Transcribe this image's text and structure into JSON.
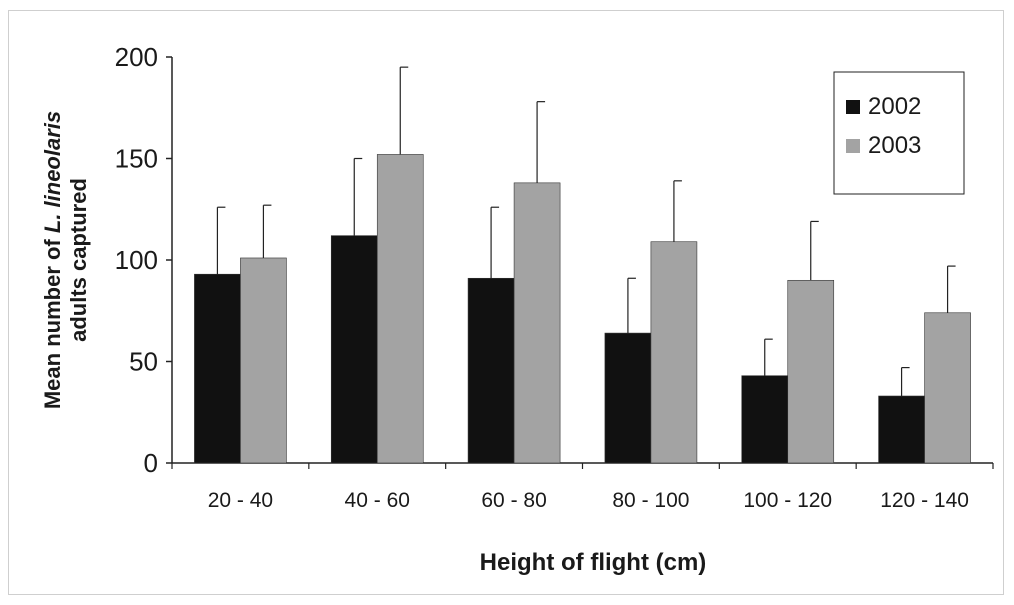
{
  "chart_data": {
    "type": "bar",
    "title": "",
    "xlabel": "Height of flight (cm)",
    "ylabel_line1": "Mean number of L. lineolaris",
    "ylabel_line2": "adults captured",
    "ylim": [
      0,
      200
    ],
    "yticks": [
      0,
      50,
      100,
      150,
      200
    ],
    "grid": false,
    "legend_position": "top-right",
    "categories": [
      "20 - 40",
      "40 - 60",
      "60 - 80",
      "80 - 100",
      "100 - 120",
      "120 - 140"
    ],
    "series": [
      {
        "name": "2002",
        "color": "#111111",
        "values": [
          93,
          112,
          91,
          64,
          43,
          33
        ],
        "errors": [
          33,
          38,
          35,
          27,
          18,
          14
        ]
      },
      {
        "name": "2003",
        "color": "#a3a3a3",
        "values": [
          101,
          152,
          138,
          109,
          90,
          74
        ],
        "errors": [
          26,
          43,
          40,
          30,
          29,
          23
        ]
      }
    ]
  }
}
